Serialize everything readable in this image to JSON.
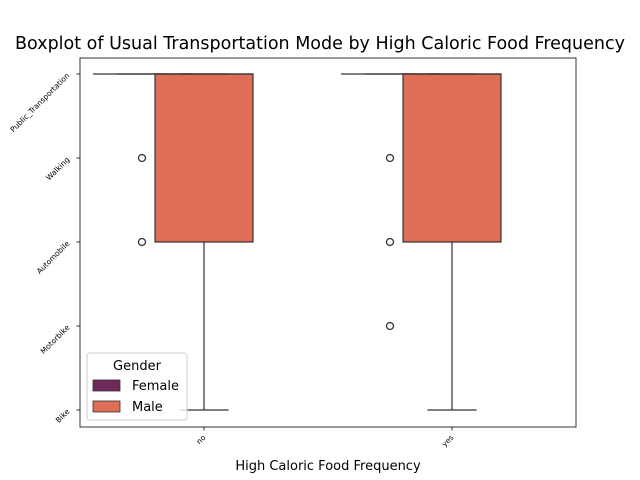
{
  "chart_data": {
    "type": "boxplot",
    "title": "Boxplot of Usual Transportation Mode by High Caloric Food Frequency",
    "xlabel": "High Caloric Food Frequency",
    "ylabel": "",
    "categories": [
      "no",
      "yes"
    ],
    "y_categories": [
      "Public_Transportation",
      "Walking",
      "Automobile",
      "Motorbike",
      "Bike"
    ],
    "legend": {
      "title": "Gender",
      "placement": "lower-left",
      "entries": [
        "Female",
        "Male"
      ]
    },
    "colors": {
      "Female": "#6e2a5a",
      "Male": "#de6e56"
    },
    "grid": false,
    "series": [
      {
        "name": "Female",
        "boxes": [
          {
            "category": "no",
            "whisker_low": 0,
            "q1": 0,
            "median": 0,
            "q3": 0,
            "whisker_high": 0,
            "outliers": [
              1,
              2
            ]
          },
          {
            "category": "yes",
            "whisker_low": 0,
            "q1": 0,
            "median": 0,
            "q3": 0,
            "whisker_high": 0,
            "outliers": [
              1,
              2,
              3
            ]
          }
        ]
      },
      {
        "name": "Male",
        "boxes": [
          {
            "category": "no",
            "whisker_low": 0,
            "q1": 0,
            "median": 0,
            "q3": 2,
            "whisker_high": 4,
            "outliers": []
          },
          {
            "category": "yes",
            "whisker_low": 0,
            "q1": 0,
            "median": 0,
            "q3": 2,
            "whisker_high": 4,
            "outliers": []
          }
        ]
      }
    ]
  }
}
